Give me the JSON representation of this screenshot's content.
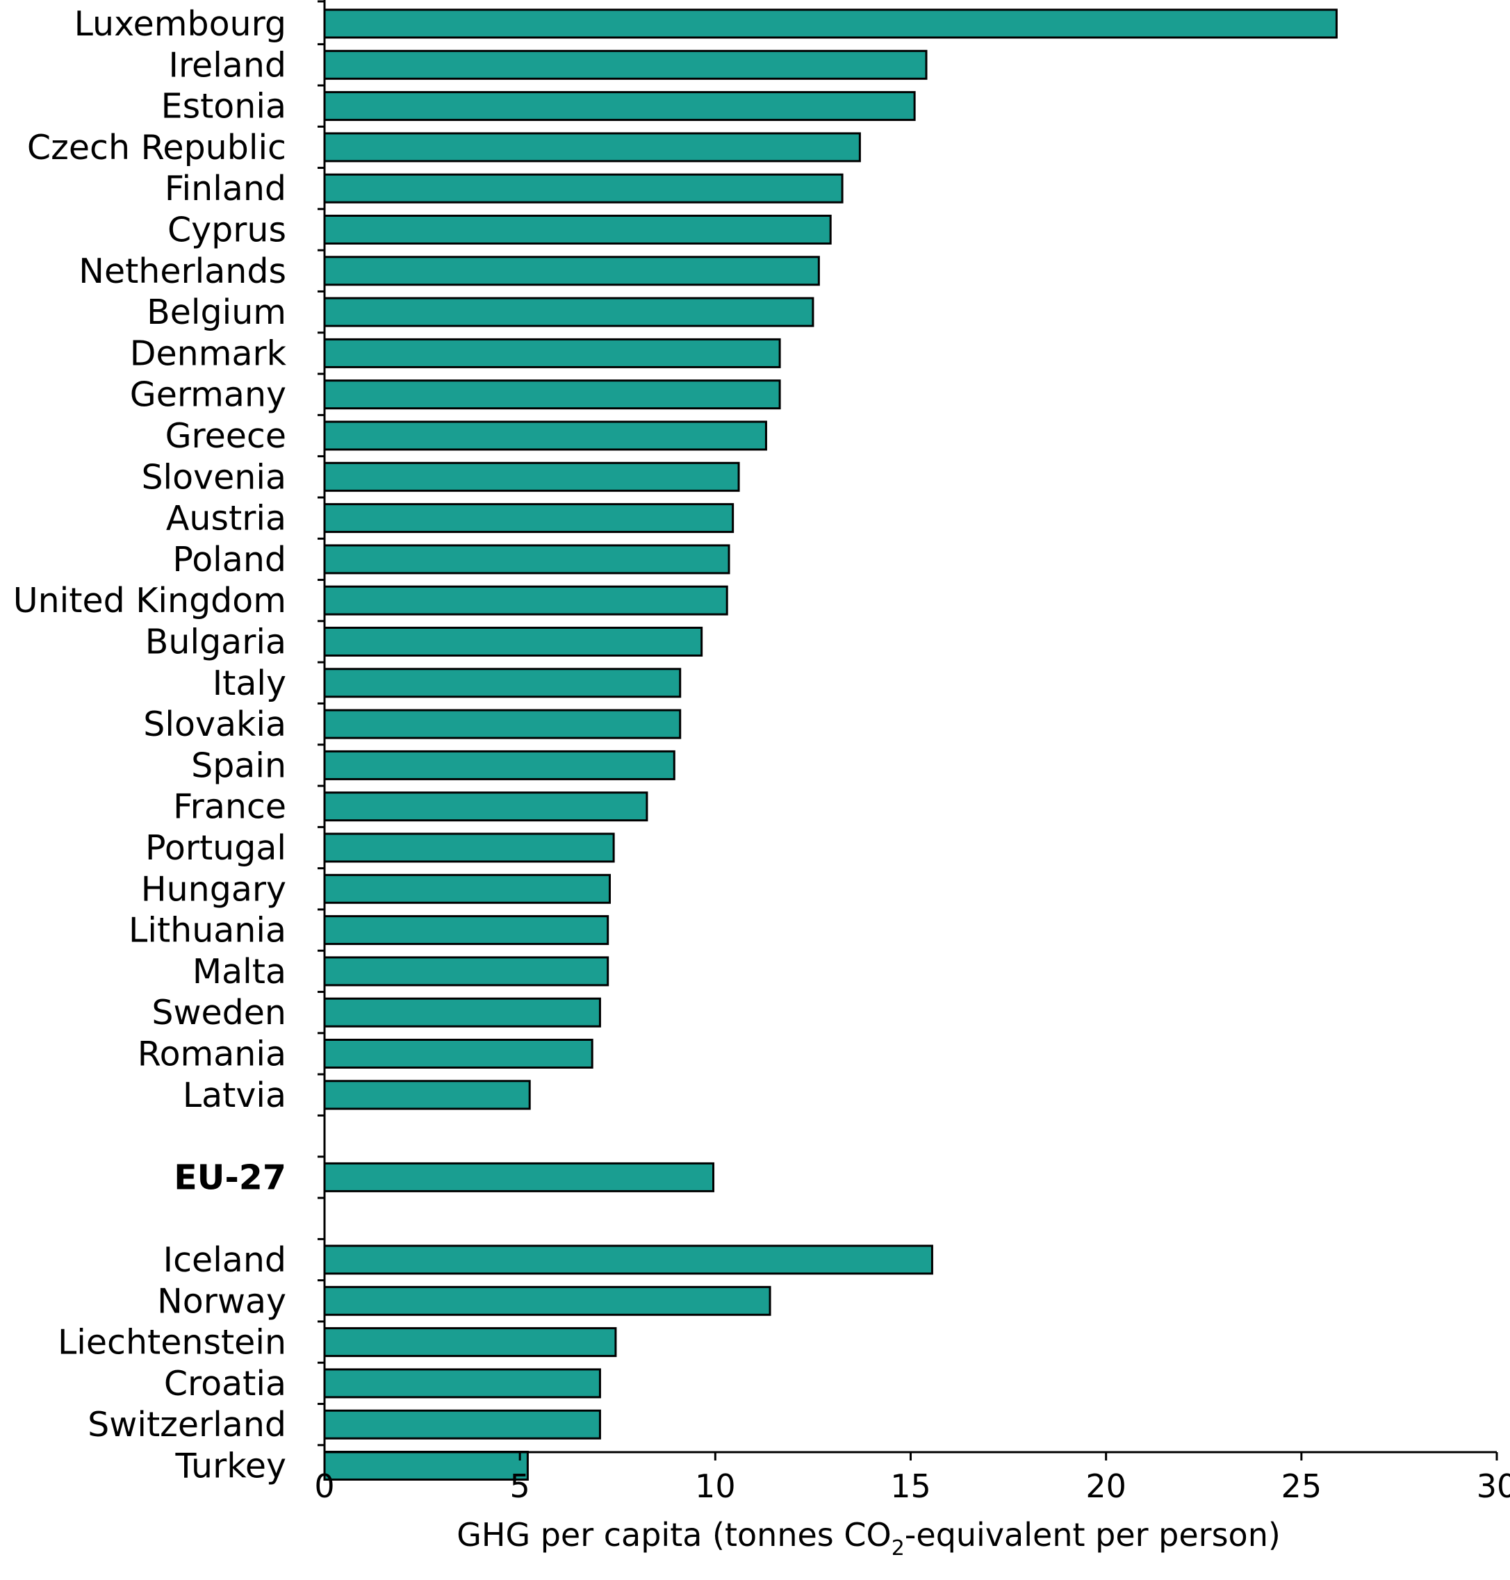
{
  "chart_data": {
    "type": "bar",
    "orientation": "horizontal",
    "bar_color": "#1a9e91",
    "categories": [
      {
        "label": "Luxembourg",
        "value": 25.9
      },
      {
        "label": "Ireland",
        "value": 15.4
      },
      {
        "label": "Estonia",
        "value": 15.1
      },
      {
        "label": "Czech Republic",
        "value": 13.7
      },
      {
        "label": "Finland",
        "value": 13.25
      },
      {
        "label": "Cyprus",
        "value": 12.95
      },
      {
        "label": "Netherlands",
        "value": 12.65
      },
      {
        "label": "Belgium",
        "value": 12.5
      },
      {
        "label": "Denmark",
        "value": 11.65
      },
      {
        "label": "Germany",
        "value": 11.65
      },
      {
        "label": "Greece",
        "value": 11.3
      },
      {
        "label": "Slovenia",
        "value": 10.6
      },
      {
        "label": "Austria",
        "value": 10.45
      },
      {
        "label": "Poland",
        "value": 10.35
      },
      {
        "label": "United Kingdom",
        "value": 10.3
      },
      {
        "label": "Bulgaria",
        "value": 9.65
      },
      {
        "label": "Italy",
        "value": 9.1
      },
      {
        "label": "Slovakia",
        "value": 9.1
      },
      {
        "label": "Spain",
        "value": 8.95
      },
      {
        "label": "France",
        "value": 8.25
      },
      {
        "label": "Portugal",
        "value": 7.4
      },
      {
        "label": "Hungary",
        "value": 7.3
      },
      {
        "label": "Lithuania",
        "value": 7.25
      },
      {
        "label": "Malta",
        "value": 7.25
      },
      {
        "label": "Sweden",
        "value": 7.05
      },
      {
        "label": "Romania",
        "value": 6.85
      },
      {
        "label": "Latvia",
        "value": 5.25
      },
      {
        "gap": true
      },
      {
        "label": "EU-27",
        "value": 9.95,
        "bold": true
      },
      {
        "gap": true
      },
      {
        "label": "Iceland",
        "value": 15.55
      },
      {
        "label": "Norway",
        "value": 11.4
      },
      {
        "label": "Liechtenstein",
        "value": 7.45
      },
      {
        "label": "Croatia",
        "value": 7.05
      },
      {
        "label": "Switzerland",
        "value": 7.05
      },
      {
        "label": "Turkey",
        "value": 5.2
      }
    ],
    "xlim": [
      0,
      30
    ],
    "xticks": [
      0,
      5,
      10,
      15,
      20,
      25,
      30
    ],
    "xlabel_before": "GHG per capita (tonnes CO",
    "xlabel_sub": "2",
    "xlabel_after": "-equivalent per person)",
    "grid": false,
    "legend": "none"
  }
}
